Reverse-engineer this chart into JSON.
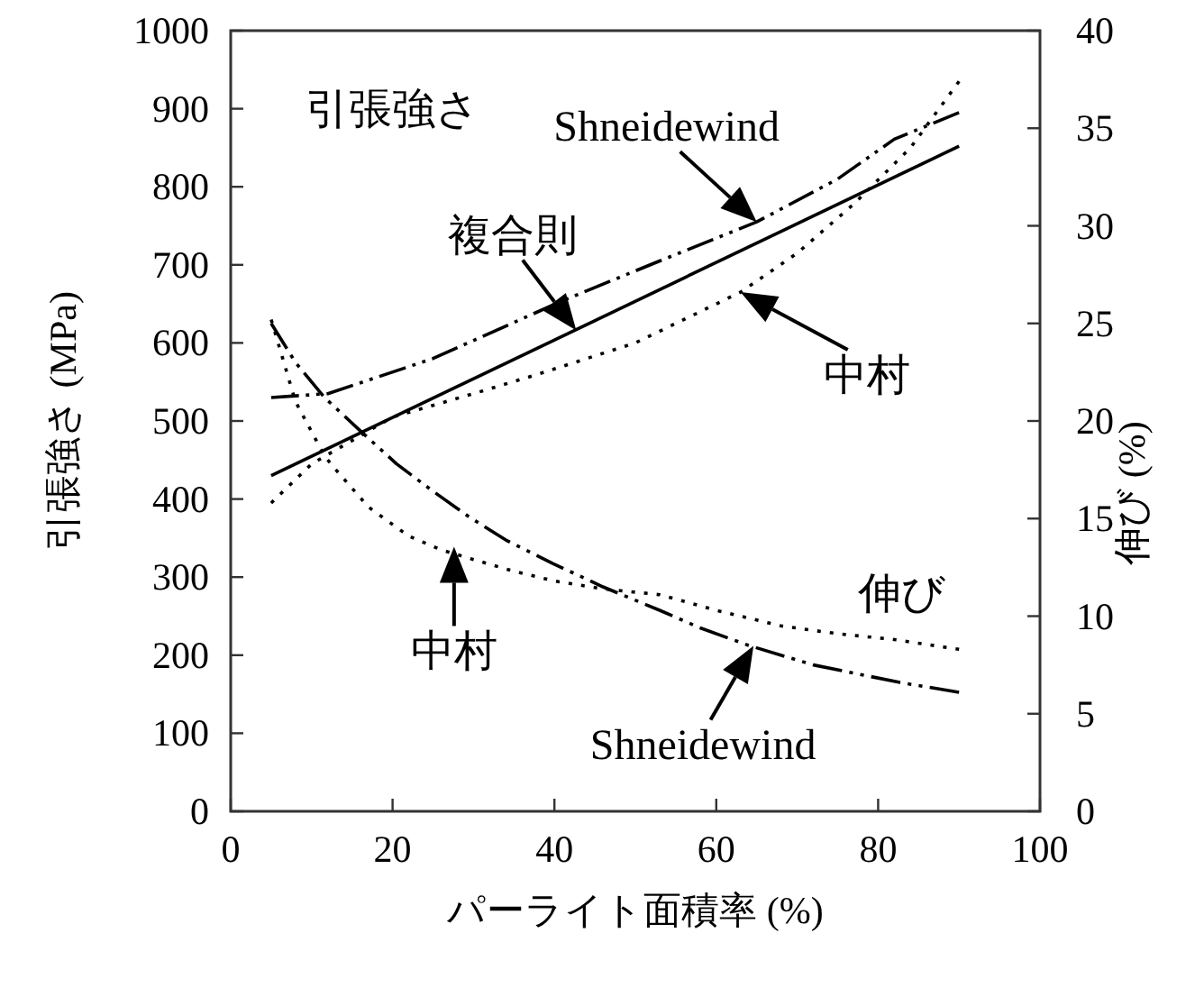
{
  "chart_data": {
    "type": "line",
    "xlabel": "パーライト面積率 (%)",
    "ylabel": "引張強さ (MPa)",
    "y2label": "伸び (%)",
    "xlim": [
      0,
      100
    ],
    "xticks": [
      0,
      20,
      40,
      60,
      80,
      100
    ],
    "ylim": [
      0,
      1000
    ],
    "yticks": [
      0,
      100,
      200,
      300,
      400,
      500,
      600,
      700,
      800,
      900,
      1000
    ],
    "y2lim": [
      0,
      40
    ],
    "y2ticks": [
      0,
      5,
      10,
      15,
      20,
      25,
      30,
      35,
      40
    ],
    "grid": false,
    "marker": "none",
    "series": [
      {
        "color": "#000000",
        "line_style": "solid",
        "x": [
          5,
          90
        ],
        "values": [
          430,
          852
        ]
      },
      {
        "color": "#000000",
        "line_style": "dashed",
        "x": [
          5,
          12,
          25,
          41,
          53,
          65,
          75,
          82,
          90
        ],
        "values": [
          530,
          535,
          580,
          654,
          705,
          755,
          810,
          861,
          895
        ]
      },
      {
        "color": "#000000",
        "line_style": "dotted",
        "x": [
          5,
          10,
          20,
          30,
          38,
          50,
          63,
          70,
          77,
          84,
          90
        ],
        "values": [
          395,
          445,
          505,
          535,
          560,
          600,
          665,
          715,
          778,
          850,
          935
        ]
      },
      {
        "color": "#000000",
        "line_style": "dashed",
        "axis": "y2",
        "x": [
          5,
          8,
          11.6,
          16,
          20.5,
          25,
          29.4,
          34,
          39.8,
          46,
          53,
          58,
          64,
          72,
          82.7,
          90
        ],
        "values": [
          25,
          23,
          21.2,
          19.5,
          17.8,
          16.4,
          15.1,
          13.9,
          12.7,
          11.5,
          10.3,
          9.4,
          8.5,
          7.5,
          6.6,
          6.1
        ]
      },
      {
        "color": "#000000",
        "line_style": "dotted",
        "axis": "y2",
        "x": [
          5,
          8,
          11.6,
          13,
          17,
          22,
          26,
          30,
          35,
          40,
          46,
          53,
          60,
          68,
          75,
          82,
          90
        ],
        "values": [
          25.2,
          21,
          18.2,
          17.5,
          15.6,
          14.1,
          13.4,
          12.9,
          12.3,
          11.8,
          11.4,
          11.1,
          10.3,
          9.5,
          9.1,
          8.8,
          8.3
        ]
      }
    ],
    "annotations": [
      "引張強さ",
      "伸び",
      {
        "text": "Shneidewind",
        "x": 65,
        "y": 755
      },
      {
        "text": "複合則",
        "x": 42.7,
        "y": 616
      },
      {
        "text": "中村",
        "x": 63,
        "y": 665
      },
      {
        "text": "中村",
        "x": 27.6,
        "y": 339
      },
      {
        "text": "Shneidewind",
        "x": 64.6,
        "y": 212
      }
    ]
  }
}
